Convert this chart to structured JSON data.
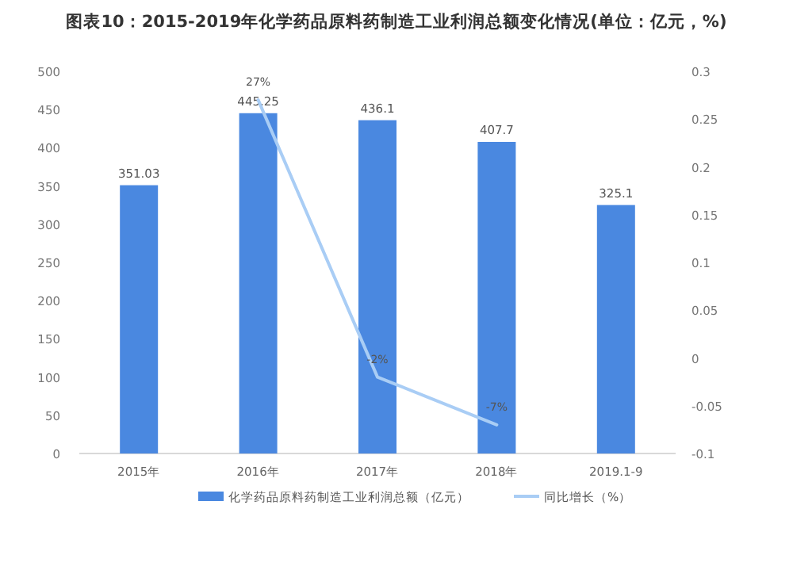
{
  "chart_data": {
    "type": "bar",
    "title": "图表10：2015-2019年化学药品原料药制造工业利润总额变化情况(单位：亿元，%)",
    "categories": [
      "2015年",
      "2016年",
      "2017年",
      "2018年",
      "2019.1-9"
    ],
    "series": [
      {
        "name": "化学药品原料药制造工业利润总额（亿元）",
        "color": "#4a88e0",
        "values": [
          351.03,
          445.25,
          436.1,
          407.7,
          325.1
        ],
        "data_labels": true
      },
      {
        "name": "同比增长（%）",
        "type": "line",
        "axis": "y2",
        "color": "#a9cdf5",
        "values": [
          null,
          0.27,
          -0.02,
          -0.07,
          null
        ],
        "value_labels": [
          null,
          "27%",
          "-2%",
          "-7%",
          null
        ]
      }
    ],
    "ylim": [
      0,
      500
    ],
    "yticks": [
      0,
      50,
      100,
      150,
      200,
      250,
      300,
      350,
      400,
      450,
      500
    ],
    "y2lim": [
      -0.1,
      0.3
    ],
    "y2ticks": [
      -0.1,
      -0.05,
      0,
      0.05,
      0.1,
      0.15,
      0.2,
      0.25,
      0.3
    ],
    "legend": "bottom",
    "grid": false,
    "marker": "none"
  }
}
